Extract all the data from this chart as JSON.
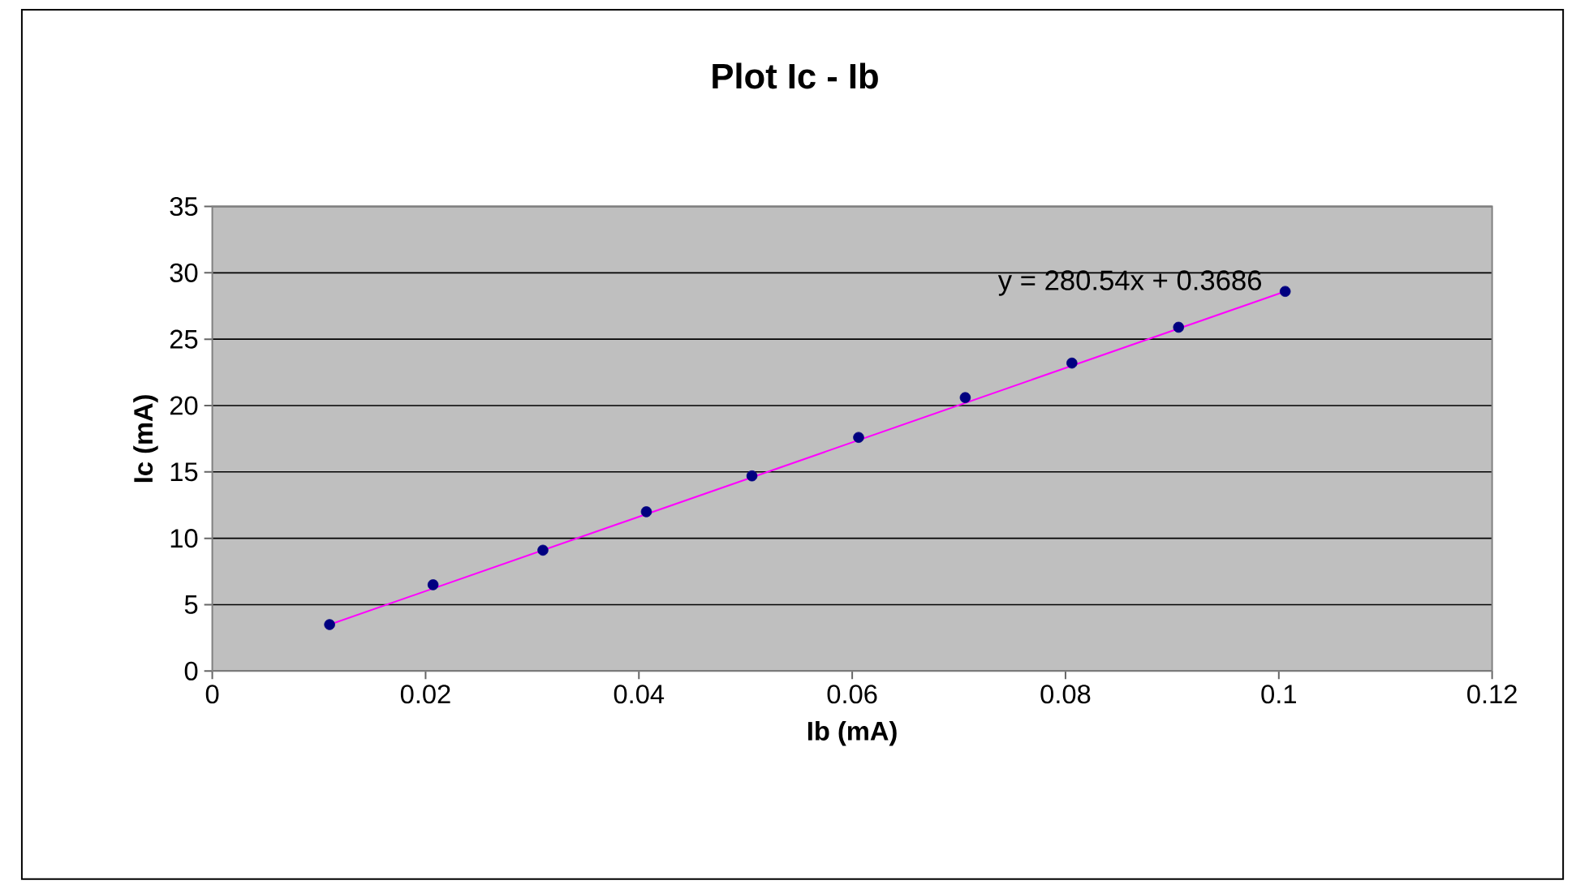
{
  "chart_data": {
    "type": "scatter",
    "title": "Plot Ic - Ib",
    "xlabel": "Ib (mA)",
    "ylabel": "Ic (mA)",
    "xlim": [
      0,
      0.12
    ],
    "xticks": [
      0,
      0.02,
      0.04,
      0.06,
      0.08,
      0.1,
      0.12
    ],
    "ylim": [
      0,
      35
    ],
    "yticks": [
      0,
      5,
      10,
      15,
      20,
      25,
      30,
      35
    ],
    "grid": "y",
    "legend": false,
    "series": [
      {
        "color": "#000080",
        "marker": "circle",
        "x": [
          0.011,
          0.0207,
          0.031,
          0.0407,
          0.0506,
          0.0606,
          0.0706,
          0.0806,
          0.0906,
          0.1006
        ],
        "values": [
          3.5,
          6.5,
          9.1,
          12.0,
          14.7,
          17.6,
          20.6,
          23.2,
          25.9,
          28.6
        ]
      },
      {
        "type": "line",
        "color": "#ff00ff",
        "marker": "none",
        "line_style": "solid",
        "x": [
          0.011,
          0.1006
        ],
        "values": [
          3.5,
          28.6
        ]
      }
    ],
    "annotations": [
      "y = 280.54x + 0.3686"
    ]
  }
}
